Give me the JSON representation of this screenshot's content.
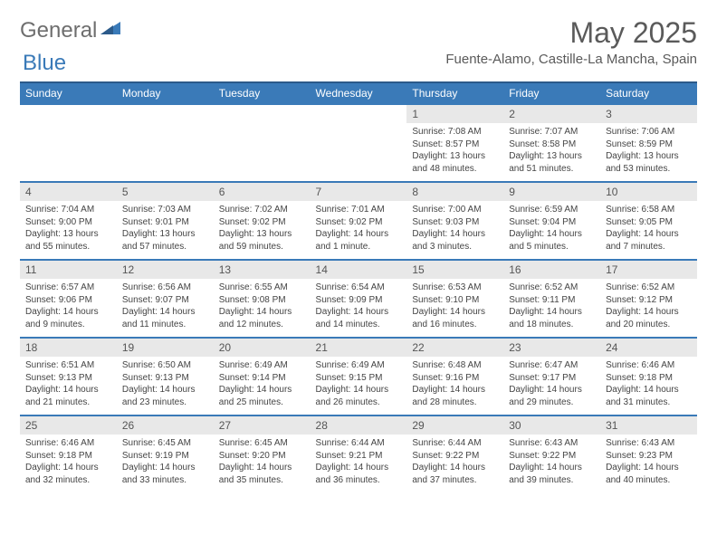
{
  "logo": {
    "part1": "General",
    "part2": "Blue"
  },
  "title": "May 2025",
  "location": "Fuente-Alamo, Castille-La Mancha, Spain",
  "colors": {
    "header_bg": "#3a7ab8",
    "header_border": "#2b5a8a",
    "row_border": "#3a7ab8",
    "daynum_bg": "#e8e8e8",
    "logo_gray": "#6e6e6e",
    "logo_blue": "#3a7ab8"
  },
  "weekdays": [
    "Sunday",
    "Monday",
    "Tuesday",
    "Wednesday",
    "Thursday",
    "Friday",
    "Saturday"
  ],
  "weeks": [
    [
      null,
      null,
      null,
      null,
      {
        "n": "1",
        "sr": "Sunrise: 7:08 AM",
        "ss": "Sunset: 8:57 PM",
        "d1": "Daylight: 13 hours",
        "d2": "and 48 minutes."
      },
      {
        "n": "2",
        "sr": "Sunrise: 7:07 AM",
        "ss": "Sunset: 8:58 PM",
        "d1": "Daylight: 13 hours",
        "d2": "and 51 minutes."
      },
      {
        "n": "3",
        "sr": "Sunrise: 7:06 AM",
        "ss": "Sunset: 8:59 PM",
        "d1": "Daylight: 13 hours",
        "d2": "and 53 minutes."
      }
    ],
    [
      {
        "n": "4",
        "sr": "Sunrise: 7:04 AM",
        "ss": "Sunset: 9:00 PM",
        "d1": "Daylight: 13 hours",
        "d2": "and 55 minutes."
      },
      {
        "n": "5",
        "sr": "Sunrise: 7:03 AM",
        "ss": "Sunset: 9:01 PM",
        "d1": "Daylight: 13 hours",
        "d2": "and 57 minutes."
      },
      {
        "n": "6",
        "sr": "Sunrise: 7:02 AM",
        "ss": "Sunset: 9:02 PM",
        "d1": "Daylight: 13 hours",
        "d2": "and 59 minutes."
      },
      {
        "n": "7",
        "sr": "Sunrise: 7:01 AM",
        "ss": "Sunset: 9:02 PM",
        "d1": "Daylight: 14 hours",
        "d2": "and 1 minute."
      },
      {
        "n": "8",
        "sr": "Sunrise: 7:00 AM",
        "ss": "Sunset: 9:03 PM",
        "d1": "Daylight: 14 hours",
        "d2": "and 3 minutes."
      },
      {
        "n": "9",
        "sr": "Sunrise: 6:59 AM",
        "ss": "Sunset: 9:04 PM",
        "d1": "Daylight: 14 hours",
        "d2": "and 5 minutes."
      },
      {
        "n": "10",
        "sr": "Sunrise: 6:58 AM",
        "ss": "Sunset: 9:05 PM",
        "d1": "Daylight: 14 hours",
        "d2": "and 7 minutes."
      }
    ],
    [
      {
        "n": "11",
        "sr": "Sunrise: 6:57 AM",
        "ss": "Sunset: 9:06 PM",
        "d1": "Daylight: 14 hours",
        "d2": "and 9 minutes."
      },
      {
        "n": "12",
        "sr": "Sunrise: 6:56 AM",
        "ss": "Sunset: 9:07 PM",
        "d1": "Daylight: 14 hours",
        "d2": "and 11 minutes."
      },
      {
        "n": "13",
        "sr": "Sunrise: 6:55 AM",
        "ss": "Sunset: 9:08 PM",
        "d1": "Daylight: 14 hours",
        "d2": "and 12 minutes."
      },
      {
        "n": "14",
        "sr": "Sunrise: 6:54 AM",
        "ss": "Sunset: 9:09 PM",
        "d1": "Daylight: 14 hours",
        "d2": "and 14 minutes."
      },
      {
        "n": "15",
        "sr": "Sunrise: 6:53 AM",
        "ss": "Sunset: 9:10 PM",
        "d1": "Daylight: 14 hours",
        "d2": "and 16 minutes."
      },
      {
        "n": "16",
        "sr": "Sunrise: 6:52 AM",
        "ss": "Sunset: 9:11 PM",
        "d1": "Daylight: 14 hours",
        "d2": "and 18 minutes."
      },
      {
        "n": "17",
        "sr": "Sunrise: 6:52 AM",
        "ss": "Sunset: 9:12 PM",
        "d1": "Daylight: 14 hours",
        "d2": "and 20 minutes."
      }
    ],
    [
      {
        "n": "18",
        "sr": "Sunrise: 6:51 AM",
        "ss": "Sunset: 9:13 PM",
        "d1": "Daylight: 14 hours",
        "d2": "and 21 minutes."
      },
      {
        "n": "19",
        "sr": "Sunrise: 6:50 AM",
        "ss": "Sunset: 9:13 PM",
        "d1": "Daylight: 14 hours",
        "d2": "and 23 minutes."
      },
      {
        "n": "20",
        "sr": "Sunrise: 6:49 AM",
        "ss": "Sunset: 9:14 PM",
        "d1": "Daylight: 14 hours",
        "d2": "and 25 minutes."
      },
      {
        "n": "21",
        "sr": "Sunrise: 6:49 AM",
        "ss": "Sunset: 9:15 PM",
        "d1": "Daylight: 14 hours",
        "d2": "and 26 minutes."
      },
      {
        "n": "22",
        "sr": "Sunrise: 6:48 AM",
        "ss": "Sunset: 9:16 PM",
        "d1": "Daylight: 14 hours",
        "d2": "and 28 minutes."
      },
      {
        "n": "23",
        "sr": "Sunrise: 6:47 AM",
        "ss": "Sunset: 9:17 PM",
        "d1": "Daylight: 14 hours",
        "d2": "and 29 minutes."
      },
      {
        "n": "24",
        "sr": "Sunrise: 6:46 AM",
        "ss": "Sunset: 9:18 PM",
        "d1": "Daylight: 14 hours",
        "d2": "and 31 minutes."
      }
    ],
    [
      {
        "n": "25",
        "sr": "Sunrise: 6:46 AM",
        "ss": "Sunset: 9:18 PM",
        "d1": "Daylight: 14 hours",
        "d2": "and 32 minutes."
      },
      {
        "n": "26",
        "sr": "Sunrise: 6:45 AM",
        "ss": "Sunset: 9:19 PM",
        "d1": "Daylight: 14 hours",
        "d2": "and 33 minutes."
      },
      {
        "n": "27",
        "sr": "Sunrise: 6:45 AM",
        "ss": "Sunset: 9:20 PM",
        "d1": "Daylight: 14 hours",
        "d2": "and 35 minutes."
      },
      {
        "n": "28",
        "sr": "Sunrise: 6:44 AM",
        "ss": "Sunset: 9:21 PM",
        "d1": "Daylight: 14 hours",
        "d2": "and 36 minutes."
      },
      {
        "n": "29",
        "sr": "Sunrise: 6:44 AM",
        "ss": "Sunset: 9:22 PM",
        "d1": "Daylight: 14 hours",
        "d2": "and 37 minutes."
      },
      {
        "n": "30",
        "sr": "Sunrise: 6:43 AM",
        "ss": "Sunset: 9:22 PM",
        "d1": "Daylight: 14 hours",
        "d2": "and 39 minutes."
      },
      {
        "n": "31",
        "sr": "Sunrise: 6:43 AM",
        "ss": "Sunset: 9:23 PM",
        "d1": "Daylight: 14 hours",
        "d2": "and 40 minutes."
      }
    ]
  ]
}
